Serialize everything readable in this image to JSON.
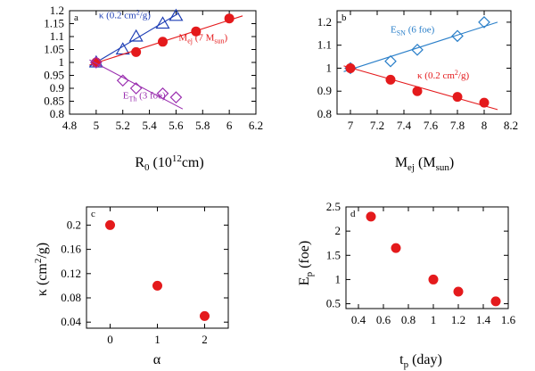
{
  "chart_data": [
    {
      "id": "a",
      "type": "scatter",
      "panel_label": "a",
      "xlabel": "R₀ (10¹²cm)",
      "ylabel": "",
      "xlim": [
        4.8,
        6.2
      ],
      "ylim": [
        0.8,
        1.2
      ],
      "xticks": [
        "4.8",
        "5",
        "5.2",
        "5.4",
        "5.6",
        "5.8",
        "6",
        "6.2"
      ],
      "yticks": [
        "0.8",
        "0.85",
        "0.9",
        "0.95",
        "1",
        "1.05",
        "1.1",
        "1.15",
        "1.2"
      ],
      "series": [
        {
          "name": "κ (0.2 cm²/g)",
          "color": "#1f3fb5",
          "marker": "triangle",
          "x": [
            5.0,
            5.2,
            5.3,
            5.5,
            5.6
          ],
          "y": [
            1.0,
            1.05,
            1.1,
            1.15,
            1.18
          ],
          "fit": [
            [
              4.95,
              0.985
            ],
            [
              5.62,
              1.19
            ]
          ]
        },
        {
          "name": "M_ej (7 M_sun)",
          "color": "#e41a1c",
          "marker": "circle",
          "x": [
            5.0,
            5.3,
            5.5,
            5.75,
            6.0
          ],
          "y": [
            1.0,
            1.04,
            1.08,
            1.12,
            1.17
          ],
          "fit": [
            [
              4.95,
              0.99
            ],
            [
              6.1,
              1.18
            ]
          ]
        },
        {
          "name": "E_Th (3 foe)",
          "color": "#9b30b0",
          "marker": "diamond",
          "x": [
            5.0,
            5.2,
            5.3,
            5.5,
            5.6
          ],
          "y": [
            1.0,
            0.93,
            0.9,
            0.88,
            0.865
          ],
          "fit": [
            [
              4.95,
              1.01
            ],
            [
              5.65,
              0.82
            ]
          ]
        }
      ],
      "annotations": [
        {
          "series": "kappa",
          "pre": "κ (0.2 cm",
          "sup": "2",
          "post": "/g)",
          "x": 5.02,
          "y": 1.17,
          "color": "#1f3fb5"
        },
        {
          "series": "mej",
          "pre": "M",
          "sub": "ej",
          "post": " (7 M",
          "sub2": "sun",
          "post2": ")",
          "x": 5.62,
          "y": 1.085,
          "color": "#e41a1c"
        },
        {
          "series": "eth",
          "pre": "E",
          "sub": "Th",
          "post": " (3 foe)",
          "x": 5.2,
          "y": 0.86,
          "color": "#9b30b0"
        }
      ]
    },
    {
      "id": "b",
      "type": "scatter",
      "panel_label": "b",
      "xlabel": "M_ej (M_sun)",
      "ylabel": "",
      "xlim": [
        6.9,
        8.2
      ],
      "ylim": [
        0.8,
        1.25
      ],
      "xticks": [
        "7",
        "7.2",
        "7.4",
        "7.6",
        "7.8",
        "8",
        "8.2"
      ],
      "yticks": [
        "0.8",
        "0.9",
        "1",
        "1.1",
        "1.2"
      ],
      "series": [
        {
          "name": "E_SN (6 foe)",
          "color": "#2a7fc9",
          "marker": "diamond",
          "x": [
            7.0,
            7.3,
            7.5,
            7.8,
            8.0
          ],
          "y": [
            1.0,
            1.03,
            1.08,
            1.14,
            1.2
          ],
          "fit": [
            [
              6.95,
              0.985
            ],
            [
              8.1,
              1.2
            ]
          ]
        },
        {
          "name": "κ (0.2 cm²/g)",
          "color": "#e41a1c",
          "marker": "circle",
          "x": [
            7.0,
            7.3,
            7.5,
            7.8,
            8.0
          ],
          "y": [
            1.0,
            0.95,
            0.9,
            0.875,
            0.85
          ],
          "fit": [
            [
              6.95,
              1.01
            ],
            [
              8.1,
              0.82
            ]
          ]
        }
      ],
      "annotations": [
        {
          "series": "esn",
          "pre": "E",
          "sub": "SN",
          "post": " (6 foe)",
          "x": 7.3,
          "y": 1.155,
          "color": "#2a7fc9"
        },
        {
          "series": "kappa",
          "pre": "κ (0.2 cm",
          "sup": "2",
          "post": "/g)",
          "x": 7.5,
          "y": 0.955,
          "color": "#e41a1c"
        }
      ]
    },
    {
      "id": "c",
      "type": "scatter",
      "panel_label": "c",
      "xlabel": "α",
      "ylabel": "κ (cm²/g)",
      "xlim": [
        -0.5,
        2.5
      ],
      "ylim": [
        0.03,
        0.23
      ],
      "xticks": [
        "0",
        "1",
        "2"
      ],
      "yticks": [
        "0.04",
        "0.08",
        "0.12",
        "0.16",
        "0.2"
      ],
      "series": [
        {
          "name": "kappa",
          "color": "#e41a1c",
          "marker": "circle",
          "x": [
            0,
            1,
            2
          ],
          "y": [
            0.2,
            0.1,
            0.05
          ]
        }
      ]
    },
    {
      "id": "d",
      "type": "scatter",
      "panel_label": "d",
      "xlabel": "t_p (day)",
      "ylabel": "E_p (foe)",
      "xlim": [
        0.3,
        1.6
      ],
      "ylim": [
        0.4,
        2.5
      ],
      "xticks": [
        "0.4",
        "0.6",
        "0.8",
        "1",
        "1.2",
        "1.4",
        "1.6"
      ],
      "yticks": [
        "0.5",
        "1",
        "1.5",
        "2",
        "2.5"
      ],
      "series": [
        {
          "name": "E_p",
          "color": "#e41a1c",
          "marker": "circle",
          "x": [
            0.5,
            0.7,
            1.0,
            1.2,
            1.5
          ],
          "y": [
            2.3,
            1.65,
            1.0,
            0.75,
            0.55
          ]
        }
      ]
    }
  ],
  "axis_text": {
    "a_x_main": "R",
    "a_x_sub": "0",
    "a_x_post": " (10",
    "a_x_sup": "12",
    "a_x_tail": "cm)",
    "b_x_main": "M",
    "b_x_sub": "ej",
    "b_x_post": " (M",
    "b_x_sub2": "sun",
    "b_x_tail": ")",
    "c_x": "α",
    "c_y_pre": "κ (cm",
    "c_y_sup": "2",
    "c_y_post": "/g)",
    "d_x_main": "t",
    "d_x_sub": "p",
    "d_x_tail": " (day)",
    "d_y_main": "E",
    "d_y_sub": "p",
    "d_y_tail": " (foe)"
  }
}
